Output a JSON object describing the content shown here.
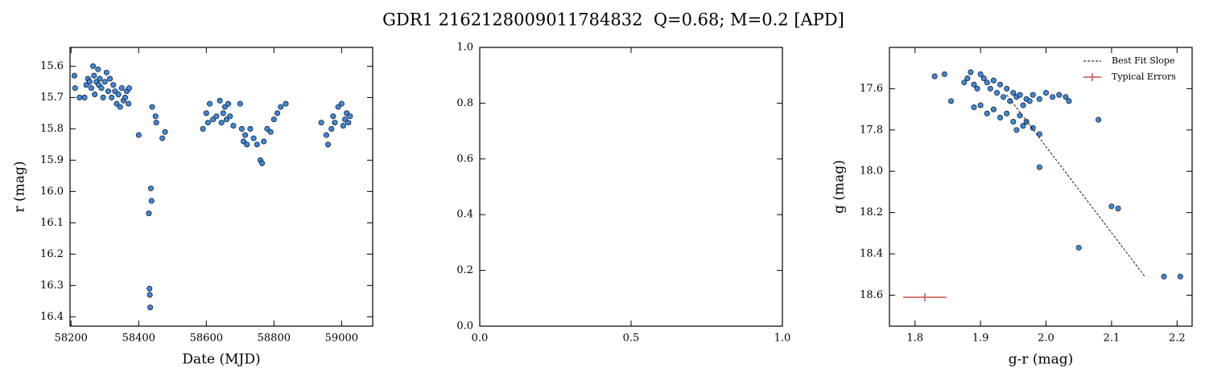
{
  "title": "GDR1 2162128009011784832  Q=0.68; M=0.2 [APD]",
  "chart_data": [
    {
      "type": "scatter",
      "xlabel": "Date (MJD)",
      "ylabel": "r (mag)",
      "xlim": [
        58197,
        59092
      ],
      "ylim": [
        16.43,
        15.54
      ],
      "xticks": [
        58200,
        58400,
        58600,
        58800,
        59000
      ],
      "yticks": [
        15.6,
        15.7,
        15.8,
        15.9,
        {
          "value": 16,
          "label": "16.0"
        },
        16.1,
        16.2,
        16.3,
        16.4
      ],
      "series": [
        {
          "color": "#3d87d8",
          "x": [
            58210,
            58212,
            58225,
            58240,
            58245,
            58250,
            58255,
            58260,
            58265,
            58268,
            58270,
            58275,
            58280,
            58282,
            58285,
            58290,
            58295,
            58300,
            58305,
            58310,
            58315,
            58320,
            58325,
            58330,
            58335,
            58340,
            58345,
            58350,
            58355,
            58360,
            58365,
            58370,
            58372,
            58400,
            58430,
            58432,
            58433,
            58434,
            58436,
            58438,
            58440,
            58450,
            58452,
            58470,
            58478,
            58590,
            58600,
            58605,
            58610,
            58620,
            58630,
            58640,
            58645,
            58650,
            58655,
            58660,
            58665,
            58670,
            58680,
            58700,
            58705,
            58710,
            58715,
            58720,
            58730,
            58740,
            58750,
            58760,
            58765,
            58770,
            58780,
            58790,
            58800,
            58810,
            58820,
            58835,
            58940,
            58955,
            58960,
            58970,
            58975,
            58980,
            58990,
            59000,
            59005,
            59010,
            59015,
            59020,
            59025
          ],
          "values": [
            15.63,
            15.67,
            15.7,
            15.7,
            15.66,
            15.64,
            15.65,
            15.67,
            15.6,
            15.63,
            15.69,
            15.65,
            15.61,
            15.66,
            15.64,
            15.67,
            15.7,
            15.65,
            15.62,
            15.68,
            15.64,
            15.7,
            15.66,
            15.68,
            15.72,
            15.69,
            15.73,
            15.67,
            15.71,
            15.7,
            15.68,
            15.72,
            15.67,
            15.82,
            16.07,
            16.31,
            16.33,
            16.37,
            15.99,
            16.03,
            15.73,
            15.76,
            15.78,
            15.83,
            15.81,
            15.8,
            15.75,
            15.78,
            15.72,
            15.77,
            15.76,
            15.71,
            15.78,
            15.75,
            15.73,
            15.77,
            15.72,
            15.76,
            15.79,
            15.72,
            15.8,
            15.84,
            15.82,
            15.85,
            15.8,
            15.83,
            15.85,
            15.9,
            15.91,
            15.84,
            15.8,
            15.81,
            15.77,
            15.75,
            15.73,
            15.72,
            15.78,
            15.82,
            15.85,
            15.8,
            15.76,
            15.78,
            15.73,
            15.72,
            15.79,
            15.77,
            15.75,
            15.78,
            15.76
          ]
        }
      ]
    },
    {
      "type": "scatter",
      "xlim": [
        0,
        1
      ],
      "ylim": [
        0,
        1
      ],
      "xticks": [
        {
          "value": 0,
          "label": "0.0"
        },
        0.5,
        {
          "value": 1,
          "label": "1.0"
        }
      ],
      "yticks": [
        {
          "value": 0,
          "label": "0.0"
        },
        0.2,
        0.4,
        0.6,
        0.8,
        {
          "value": 1,
          "label": "1.0"
        }
      ],
      "series": []
    },
    {
      "type": "scatter",
      "xlabel": "g-r (mag)",
      "ylabel": "g (mag)",
      "legend": "upper right",
      "xlim": [
        1.761,
        2.223
      ],
      "ylim": [
        18.75,
        17.4
      ],
      "xticks": [
        1.8,
        1.9,
        {
          "value": 2,
          "label": "2.0"
        },
        2.1,
        2.2
      ],
      "yticks": [
        17.6,
        17.8,
        {
          "value": 18,
          "label": "18.0"
        },
        18.2,
        18.4,
        18.6
      ],
      "series": [
        {
          "color": "#3d87d8",
          "x": [
            1.83,
            1.845,
            1.855,
            1.875,
            1.88,
            1.885,
            1.89,
            1.895,
            1.9,
            1.905,
            1.91,
            1.915,
            1.92,
            1.925,
            1.93,
            1.935,
            1.94,
            1.945,
            1.95,
            1.955,
            1.96,
            1.965,
            1.97,
            1.975,
            1.98,
            1.99,
            2.0,
            2.01,
            2.02,
            2.03,
            2.035,
            1.89,
            1.9,
            1.91,
            1.92,
            1.93,
            1.94,
            1.95,
            1.955,
            1.96,
            1.965,
            1.97,
            1.98,
            1.99,
            2.08,
            1.99,
            2.1,
            2.11,
            2.05,
            2.18,
            2.205
          ],
          "values": [
            17.54,
            17.53,
            17.66,
            17.57,
            17.55,
            17.52,
            17.58,
            17.6,
            17.53,
            17.55,
            17.57,
            17.6,
            17.56,
            17.62,
            17.58,
            17.64,
            17.6,
            17.66,
            17.62,
            17.64,
            17.63,
            17.68,
            17.65,
            17.66,
            17.63,
            17.65,
            17.62,
            17.64,
            17.63,
            17.64,
            17.66,
            17.69,
            17.68,
            17.72,
            17.7,
            17.74,
            17.72,
            17.76,
            17.8,
            17.73,
            17.78,
            17.76,
            17.79,
            17.82,
            17.75,
            17.98,
            18.17,
            18.18,
            18.37,
            18.51,
            18.51
          ]
        },
        {
          "name": "Best Fit Slope",
          "type": "line",
          "color": "#000000",
          "dashed": true,
          "x": [
            1.94,
            2.151
          ],
          "values": [
            17.63,
            18.51
          ]
        },
        {
          "name": "Typical Errors",
          "type": "errorbar",
          "color": "#c8504c",
          "x": [
            1.815
          ],
          "values": [
            18.61
          ],
          "xerr": [
            0.033
          ],
          "yerr": [
            0.02
          ]
        }
      ]
    }
  ]
}
